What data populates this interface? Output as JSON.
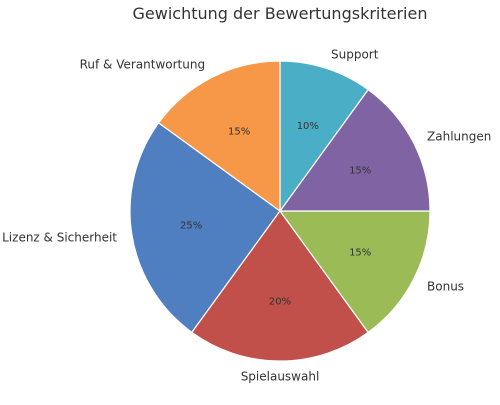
{
  "chart_data": {
    "type": "pie",
    "title": "Gewichtung der Bewertungskriterien",
    "slices": [
      {
        "label": "Lizenz & Sicherheit",
        "value": 25,
        "display": "25%",
        "color": "#4f7fc0"
      },
      {
        "label": "Spielauswahl",
        "value": 20,
        "display": "20%",
        "color": "#c14f4a"
      },
      {
        "label": "Bonus",
        "value": 15,
        "display": "15%",
        "color": "#9bbb57"
      },
      {
        "label": "Zahlungen",
        "value": 15,
        "display": "15%",
        "color": "#7f63a3"
      },
      {
        "label": "Support",
        "value": 10,
        "display": "10%",
        "color": "#4aaec7"
      },
      {
        "label": "Ruf & Verantwortung",
        "value": 15,
        "display": "15%",
        "color": "#f69848"
      }
    ],
    "start_angle_deg": 144,
    "direction": "counterclockwise",
    "slice_edge_color": "#ffffff"
  }
}
